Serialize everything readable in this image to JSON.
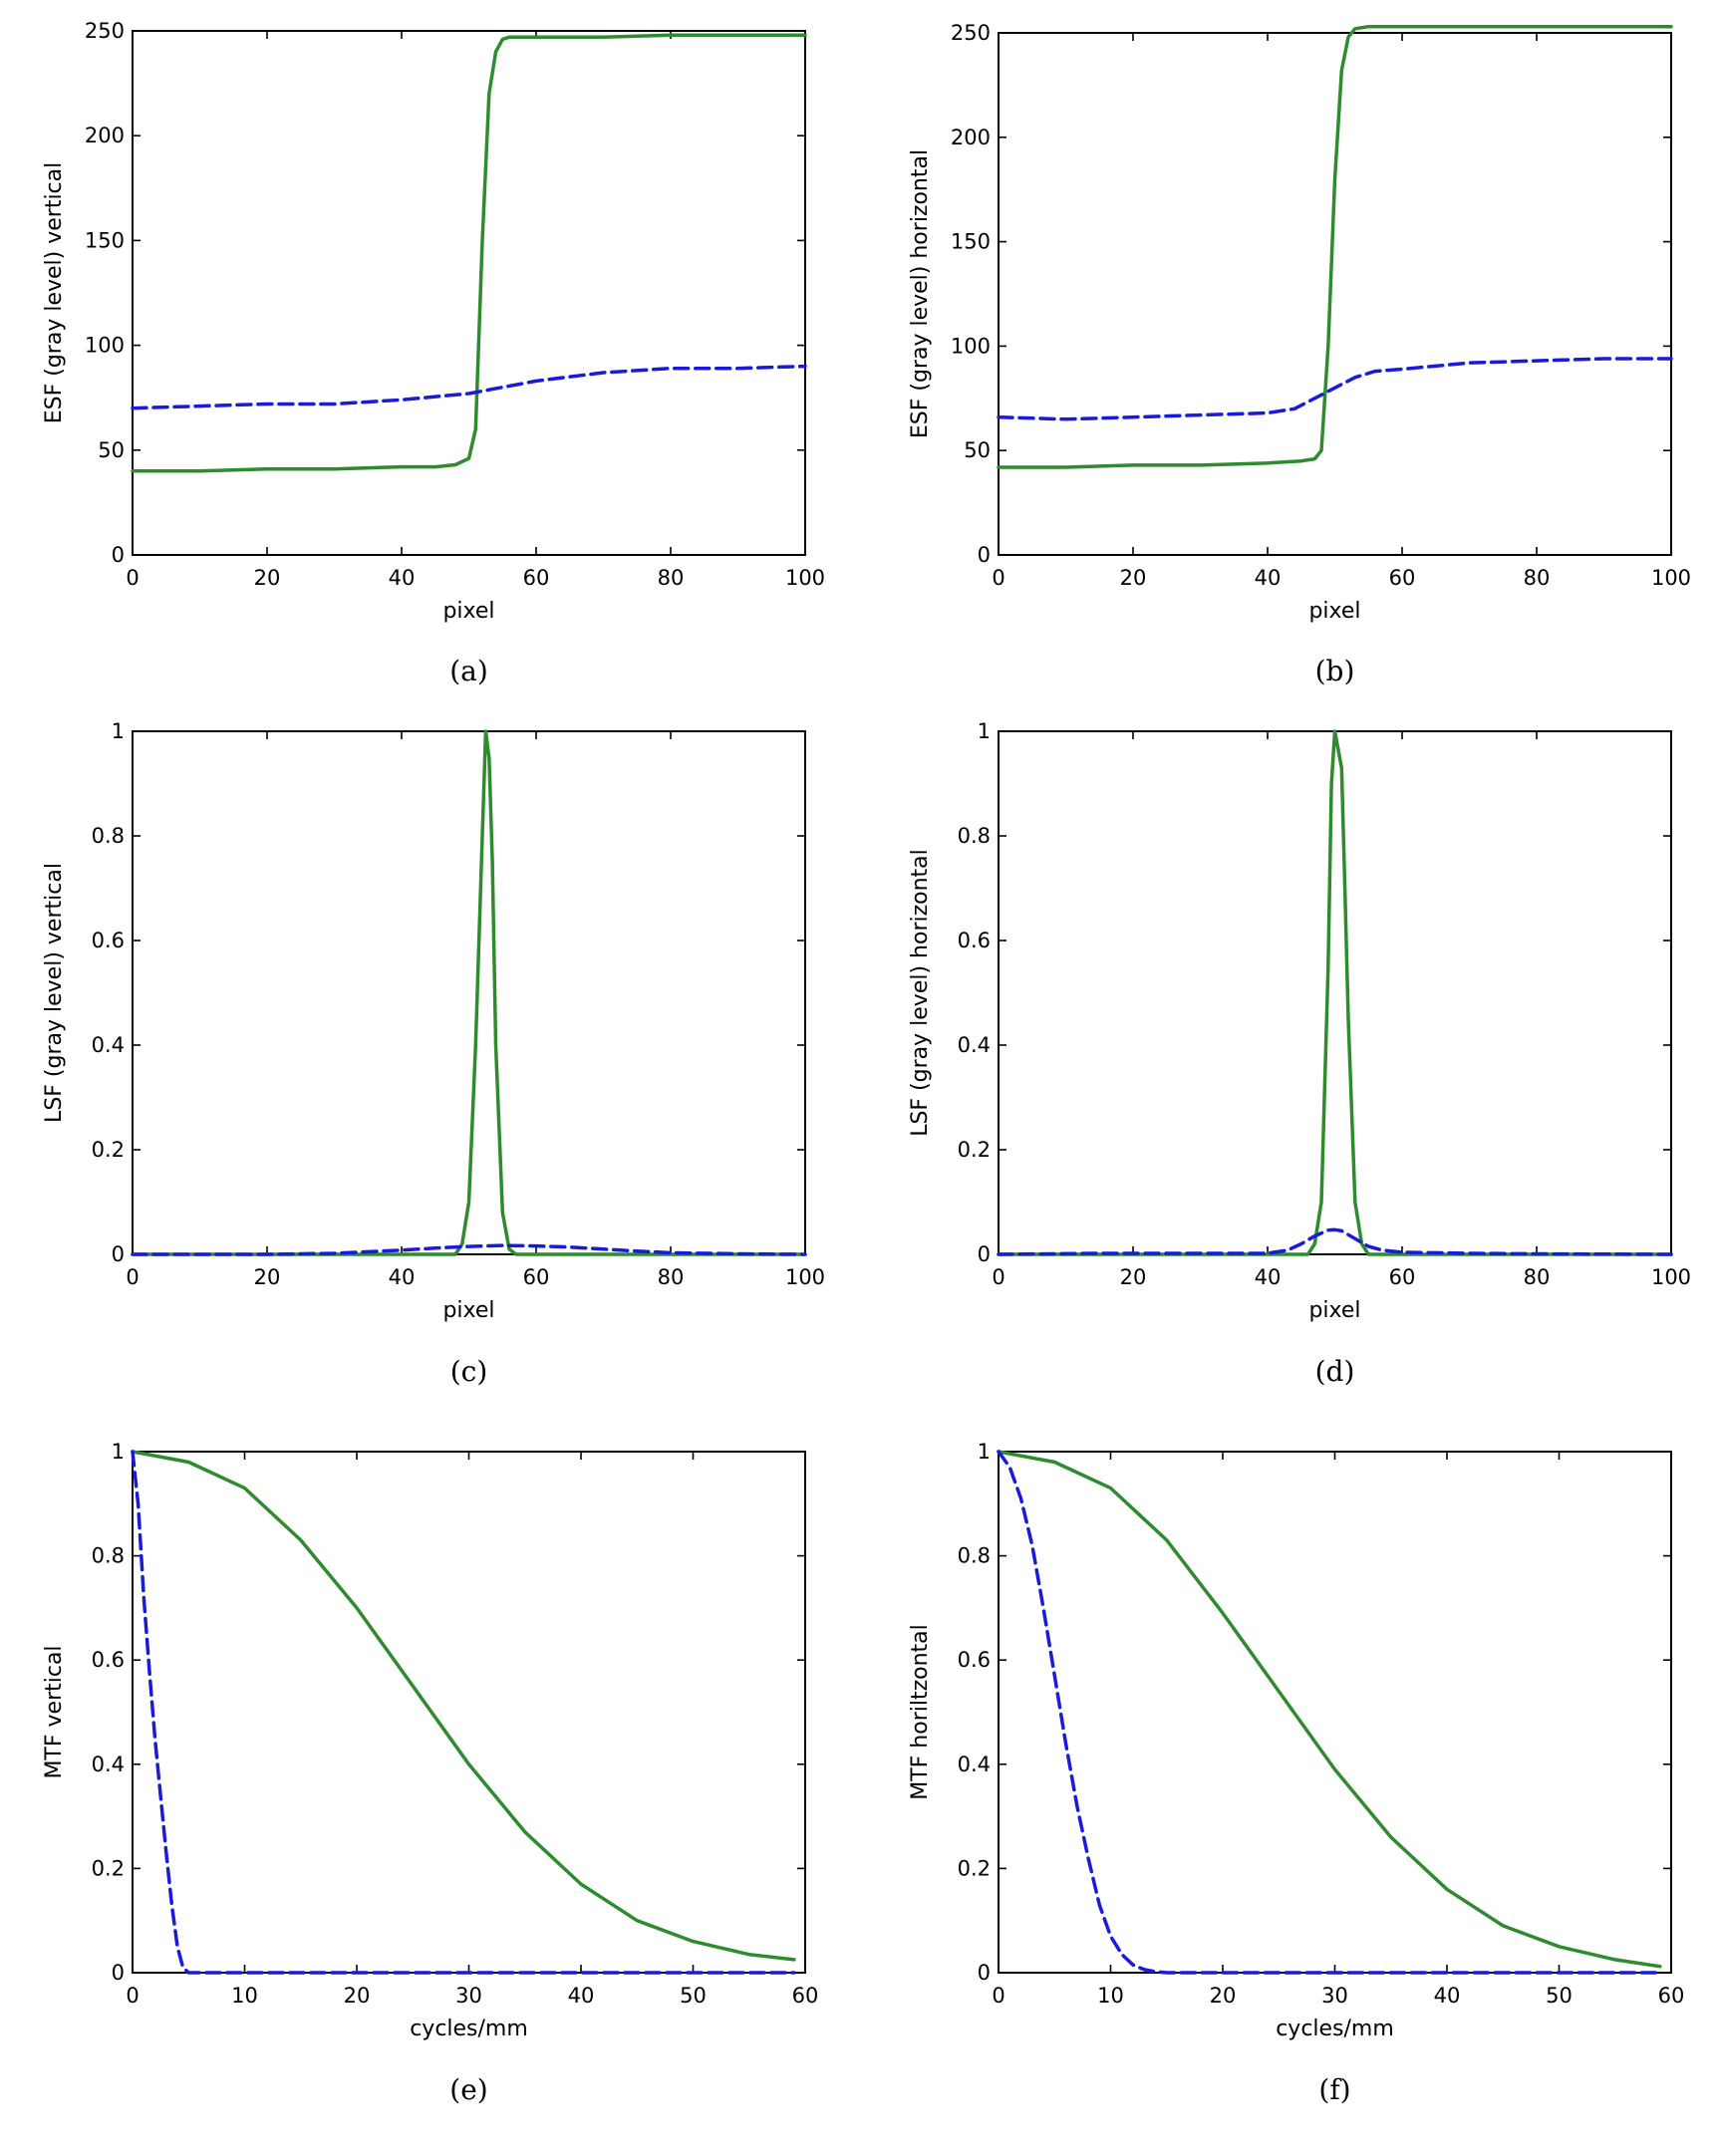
{
  "figure": {
    "colors": {
      "green": "#2e8b2e",
      "blue": "#1a1adb"
    },
    "panels": [
      {
        "caption": "(a)",
        "chart_data": {
          "type": "line",
          "xlabel": "pixel",
          "ylabel": "ESF (gray level) vertical",
          "xlim": [
            0,
            100
          ],
          "ylim": [
            0,
            250
          ],
          "xticks": [
            0,
            20,
            40,
            60,
            80,
            100
          ],
          "yticks": [
            0,
            50,
            100,
            150,
            200,
            250
          ],
          "grid": false,
          "series": [
            {
              "color": "#2e8b2e",
              "style": "solid",
              "x": [
                0,
                10,
                20,
                30,
                40,
                45,
                48,
                50,
                51,
                52,
                53,
                54,
                55,
                56,
                60,
                70,
                80,
                90,
                100
              ],
              "y": [
                40,
                40,
                41,
                41,
                42,
                42,
                43,
                46,
                60,
                150,
                220,
                240,
                246,
                247,
                247,
                247,
                248,
                248,
                248
              ]
            },
            {
              "color": "#1a1adb",
              "style": "dashed",
              "x": [
                0,
                10,
                20,
                30,
                40,
                50,
                55,
                60,
                70,
                80,
                90,
                100
              ],
              "y": [
                70,
                71,
                72,
                72,
                74,
                77,
                80,
                83,
                87,
                89,
                89,
                90
              ]
            }
          ]
        }
      },
      {
        "caption": "(b)",
        "chart_data": {
          "type": "line",
          "xlabel": "pixel",
          "ylabel": "ESF (gray level) horizontal",
          "xlim": [
            0,
            100
          ],
          "ylim": [
            0,
            250
          ],
          "xticks": [
            0,
            20,
            40,
            60,
            80,
            100
          ],
          "yticks": [
            0,
            50,
            100,
            150,
            200,
            250
          ],
          "grid": false,
          "series": [
            {
              "color": "#2e8b2e",
              "style": "solid",
              "x": [
                0,
                10,
                20,
                30,
                40,
                45,
                47,
                48,
                49,
                50,
                51,
                52,
                53,
                55,
                60,
                70,
                80,
                90,
                100
              ],
              "y": [
                42,
                42,
                43,
                43,
                44,
                45,
                46,
                50,
                100,
                180,
                232,
                248,
                252,
                253,
                253,
                253,
                253,
                253,
                253
              ]
            },
            {
              "color": "#1a1adb",
              "style": "dashed",
              "x": [
                0,
                10,
                20,
                30,
                40,
                44,
                47,
                50,
                53,
                56,
                60,
                70,
                80,
                90,
                100
              ],
              "y": [
                66,
                65,
                66,
                67,
                68,
                70,
                75,
                80,
                85,
                88,
                89,
                92,
                93,
                94,
                94
              ]
            }
          ]
        }
      },
      {
        "caption": "(c)",
        "chart_data": {
          "type": "line",
          "xlabel": "pixel",
          "ylabel": "LSF (gray level) vertical",
          "xlim": [
            0,
            100
          ],
          "ylim": [
            0,
            1
          ],
          "xticks": [
            0,
            20,
            40,
            60,
            80,
            100
          ],
          "yticks": [
            0,
            0.2,
            0.4,
            0.6,
            0.8,
            1
          ],
          "grid": false,
          "series": [
            {
              "color": "#2e8b2e",
              "style": "solid",
              "x": [
                0,
                40,
                48,
                49,
                50,
                51,
                52,
                52.5,
                53,
                53.5,
                54,
                55,
                56,
                57,
                60,
                100
              ],
              "y": [
                0,
                0,
                0,
                0.02,
                0.1,
                0.4,
                0.8,
                1,
                0.95,
                0.75,
                0.4,
                0.08,
                0.01,
                0,
                0,
                0
              ]
            },
            {
              "color": "#1a1adb",
              "style": "dashed",
              "x": [
                0,
                20,
                30,
                35,
                40,
                45,
                50,
                55,
                60,
                65,
                70,
                75,
                80,
                90,
                100
              ],
              "y": [
                0,
                0,
                0.002,
                0.005,
                0.008,
                0.012,
                0.015,
                0.017,
                0.016,
                0.014,
                0.01,
                0.006,
                0.003,
                0.001,
                0
              ]
            }
          ]
        }
      },
      {
        "caption": "(d)",
        "chart_data": {
          "type": "line",
          "xlabel": "pixel",
          "ylabel": "LSF (gray level) horizontal",
          "xlim": [
            0,
            100
          ],
          "ylim": [
            0,
            1
          ],
          "xticks": [
            0,
            20,
            40,
            60,
            80,
            100
          ],
          "yticks": [
            0,
            0.2,
            0.4,
            0.6,
            0.8,
            1
          ],
          "grid": false,
          "series": [
            {
              "color": "#2e8b2e",
              "style": "solid",
              "x": [
                0,
                40,
                46,
                47,
                48,
                49,
                49.5,
                50,
                51,
                51.5,
                52,
                53,
                54,
                55,
                60,
                100
              ],
              "y": [
                0,
                0,
                0,
                0.02,
                0.1,
                0.55,
                0.9,
                1,
                0.93,
                0.7,
                0.45,
                0.1,
                0.02,
                0,
                0,
                0
              ]
            },
            {
              "color": "#1a1adb",
              "style": "dashed",
              "x": [
                0,
                15,
                30,
                40,
                43,
                45,
                47,
                49,
                50,
                51,
                53,
                55,
                57,
                60,
                70,
                80,
                100
              ],
              "y": [
                0,
                0.002,
                0.002,
                0.002,
                0.008,
                0.02,
                0.035,
                0.046,
                0.047,
                0.045,
                0.03,
                0.015,
                0.008,
                0.004,
                0.002,
                0.001,
                0
              ]
            }
          ]
        }
      },
      {
        "caption": "(e)",
        "chart_data": {
          "type": "line",
          "xlabel": "cycles/mm",
          "ylabel": "MTF vertical",
          "xlim": [
            0,
            60
          ],
          "ylim": [
            0,
            1
          ],
          "xticks": [
            0,
            10,
            20,
            30,
            40,
            50,
            60
          ],
          "yticks": [
            0,
            0.2,
            0.4,
            0.6,
            0.8,
            1
          ],
          "grid": false,
          "series": [
            {
              "color": "#2e8b2e",
              "style": "solid",
              "x": [
                0,
                5,
                10,
                15,
                20,
                25,
                30,
                35,
                40,
                45,
                50,
                55,
                59
              ],
              "y": [
                1,
                0.98,
                0.93,
                0.83,
                0.7,
                0.55,
                0.4,
                0.27,
                0.17,
                0.1,
                0.06,
                0.035,
                0.025
              ]
            },
            {
              "color": "#1a1adb",
              "style": "dashed",
              "x": [
                0,
                0.5,
                1,
                1.5,
                2,
                2.5,
                3,
                3.5,
                4,
                4.5,
                5,
                10,
                20,
                30,
                40,
                50,
                59
              ],
              "y": [
                1,
                0.9,
                0.72,
                0.58,
                0.45,
                0.34,
                0.23,
                0.13,
                0.05,
                0.01,
                0,
                0,
                0,
                0,
                0,
                0,
                0
              ]
            }
          ]
        }
      },
      {
        "caption": "(f)",
        "chart_data": {
          "type": "line",
          "xlabel": "cycles/mm",
          "ylabel": "MTF horiltzontal",
          "xlim": [
            0,
            60
          ],
          "ylim": [
            0,
            1
          ],
          "xticks": [
            0,
            10,
            20,
            30,
            40,
            50,
            60
          ],
          "yticks": [
            0,
            0.2,
            0.4,
            0.6,
            0.8,
            1
          ],
          "grid": false,
          "series": [
            {
              "color": "#2e8b2e",
              "style": "solid",
              "x": [
                0,
                5,
                10,
                15,
                20,
                25,
                30,
                35,
                40,
                45,
                50,
                55,
                59
              ],
              "y": [
                1,
                0.98,
                0.93,
                0.83,
                0.69,
                0.54,
                0.39,
                0.26,
                0.16,
                0.09,
                0.05,
                0.025,
                0.012
              ]
            },
            {
              "color": "#1a1adb",
              "style": "dashed",
              "x": [
                0,
                1,
                2,
                3,
                4,
                5,
                6,
                7,
                8,
                9,
                10,
                11,
                12,
                13,
                14,
                15,
                20,
                30,
                40,
                50,
                59
              ],
              "y": [
                1,
                0.97,
                0.91,
                0.82,
                0.7,
                0.57,
                0.44,
                0.32,
                0.22,
                0.13,
                0.07,
                0.035,
                0.015,
                0.006,
                0.002,
                0,
                0,
                0,
                0,
                0,
                0
              ]
            }
          ]
        }
      }
    ]
  }
}
